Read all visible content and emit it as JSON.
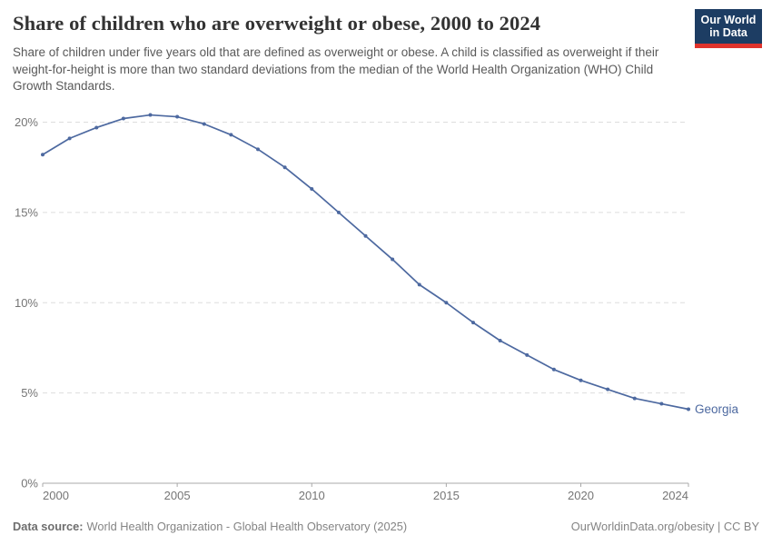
{
  "header": {
    "title": "Share of children who are overweight or obese, 2000 to 2024",
    "subtitle": "Share of children under five years old that are defined as overweight or obese. A child is classified as overweight if their weight-for-height is more than two standard deviations from the median of the World Health Organization (WHO) Child Growth Standards.",
    "logo": {
      "line1": "Our World",
      "line2": "in Data"
    }
  },
  "chart_data": {
    "type": "line",
    "title": "Share of children who are overweight or obese, 2000 to 2024",
    "x": [
      2000,
      2001,
      2002,
      2003,
      2004,
      2005,
      2006,
      2007,
      2008,
      2009,
      2010,
      2011,
      2012,
      2013,
      2014,
      2015,
      2016,
      2017,
      2018,
      2019,
      2020,
      2021,
      2022,
      2023,
      2024
    ],
    "series": [
      {
        "name": "Georgia",
        "values": [
          18.2,
          19.1,
          19.7,
          20.2,
          20.4,
          20.3,
          19.9,
          19.3,
          18.5,
          17.5,
          16.3,
          15.0,
          13.7,
          12.4,
          11.0,
          10.0,
          8.9,
          7.9,
          7.1,
          6.3,
          5.7,
          5.2,
          4.7,
          4.4,
          4.1
        ]
      }
    ],
    "xlabel": "",
    "ylabel": "",
    "xlim": [
      2000,
      2024
    ],
    "ylim": [
      0,
      20
    ],
    "xticks": [
      2000,
      2005,
      2010,
      2015,
      2020,
      2024
    ],
    "yticks": [
      0,
      5,
      10,
      15,
      20
    ],
    "ytick_suffix": "%",
    "grid": "horizontal-dashed",
    "legend_position": "end-of-line",
    "end_label": "Georgia"
  },
  "footer": {
    "source_label": "Data source:",
    "source_value": "World Health Organization - Global Health Observatory (2025)",
    "right": "OurWorldinData.org/obesity | CC BY"
  },
  "colors": {
    "line": "#4d69a0",
    "grid": "#dddddd",
    "axis": "#a8a8a8",
    "tick_text": "#757575",
    "logo_bg": "#1d3d63",
    "logo_red": "#e0332c"
  }
}
